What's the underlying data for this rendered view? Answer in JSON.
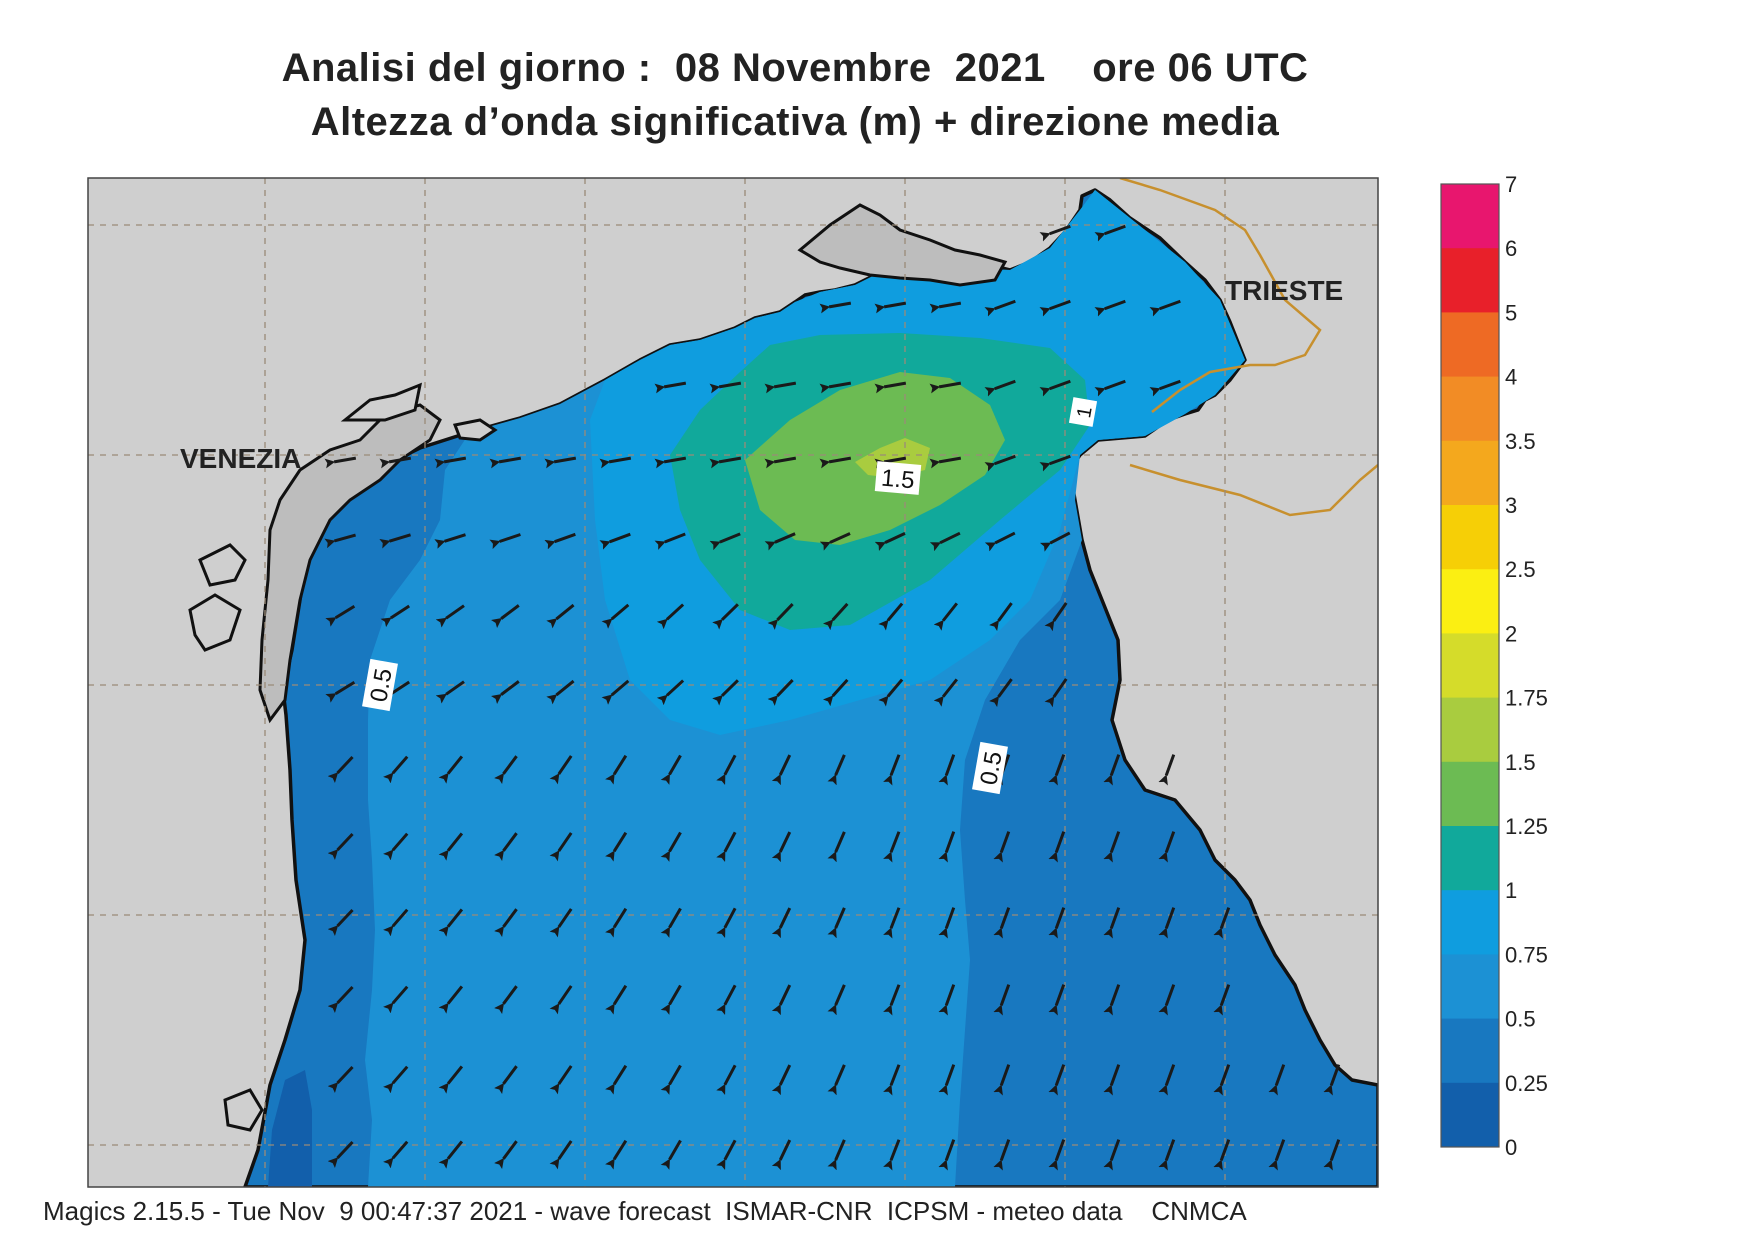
{
  "title": {
    "line1": "Analisi del giorno :  08 Novembre  2021    ore 06 UTC",
    "line2": "Altezza d’onda significativa (m) + direzione media"
  },
  "cities": {
    "venezia": "VENEZIA",
    "trieste": "TRIESTE"
  },
  "contour_labels": {
    "left": "0.5",
    "right": "0.5",
    "center": "1.5",
    "northeast": "1"
  },
  "colorbar": {
    "ticks": [
      "7",
      "6",
      "5",
      "4",
      "3.5",
      "3",
      "2.5",
      "2",
      "1.75",
      "1.5",
      "1.25",
      "1",
      "0.75",
      "0.5",
      "0.25",
      "0"
    ],
    "colors": {
      "6-7": "#e8166e",
      "5-6": "#e8202a",
      "4-5": "#ee6a24",
      "3.5-4": "#f28c25",
      "3-3.5": "#f4a81d",
      "2.5-3": "#f6cf06",
      "2-2.5": "#fbef12",
      "1.75-2": "#d5dc2a",
      "1.5-1.75": "#a9cc3f",
      "1.25-1.5": "#6cbb53",
      "1-1.25": "#11a99b",
      "0.75-1": "#0f9ddf",
      "0.5-0.75": "#1c91d4",
      "0.25-0.5": "#1878c0",
      "0-0.25": "#125fab"
    }
  },
  "colors": {
    "land": "#cfcfcf",
    "arrow": "#1a1a1a",
    "border": "#c7902e"
  },
  "footer": "Magics 2.15.5 - Tue Nov  9 00:47:37 2021 - wave forecast  ISMAR-CNR  ICPSM - meteo data    CNMCA"
}
